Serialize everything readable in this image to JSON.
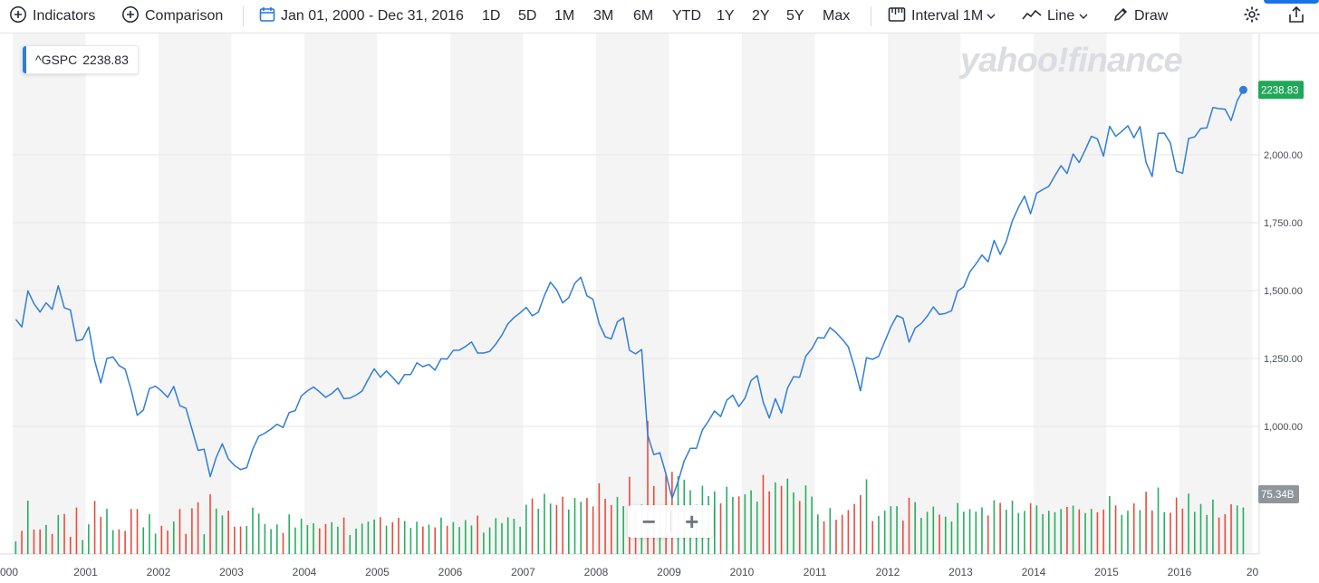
{
  "toolbar": {
    "indicators": "Indicators",
    "comparison": "Comparison",
    "date_range": "Jan 01, 2000 - Dec 31, 2016",
    "ranges": [
      "1D",
      "5D",
      "1M",
      "3M",
      "6M",
      "YTD",
      "1Y",
      "2Y",
      "5Y",
      "Max"
    ],
    "interval_label": "Interval",
    "interval_value": "1M",
    "chart_type": "Line",
    "draw": "Draw"
  },
  "legend": {
    "symbol": "^GSPC",
    "value": "2238.83"
  },
  "watermark": "yahoo!finance",
  "zoom": {
    "minus": "−",
    "plus": "+"
  },
  "colors": {
    "line": "#2f7ed8",
    "up": "#27ae60",
    "down": "#e74c3c",
    "last_price_bg": "#20a858",
    "volume_label_bg": "#8f959b"
  },
  "chart_data": {
    "type": "line",
    "symbol": "^GSPC",
    "x_ticks": [
      "000",
      "2001",
      "2002",
      "2003",
      "2004",
      "2005",
      "2006",
      "2007",
      "2008",
      "2009",
      "2010",
      "2011",
      "2012",
      "2013",
      "2014",
      "2015",
      "2016",
      "20"
    ],
    "y_ticks": [
      "1,000.00",
      "1,250.00",
      "1,500.00",
      "1,750.00",
      "2,000.00"
    ],
    "ylim": [
      730,
      2360
    ],
    "last_price_label": "2238.83",
    "volume_label": "75.34B",
    "start_year": 2000,
    "close": [
      1394,
      1366,
      1499,
      1452,
      1421,
      1455,
      1431,
      1518,
      1437,
      1429,
      1315,
      1320,
      1366,
      1240,
      1160,
      1250,
      1256,
      1224,
      1211,
      1134,
      1041,
      1060,
      1139,
      1148,
      1130,
      1107,
      1147,
      1076,
      1067,
      990,
      912,
      916,
      815,
      886,
      936,
      880,
      856,
      841,
      848,
      916,
      964,
      975,
      990,
      1008,
      996,
      1051,
      1058,
      1112,
      1131,
      1145,
      1127,
      1107,
      1121,
      1141,
      1102,
      1104,
      1115,
      1130,
      1173,
      1212,
      1181,
      1204,
      1181,
      1156,
      1191,
      1191,
      1234,
      1220,
      1228,
      1207,
      1249,
      1248,
      1280,
      1281,
      1294,
      1311,
      1270,
      1270,
      1276,
      1303,
      1336,
      1378,
      1401,
      1418,
      1438,
      1407,
      1421,
      1482,
      1531,
      1503,
      1455,
      1474,
      1527,
      1549,
      1481,
      1468,
      1378,
      1330,
      1322,
      1385,
      1400,
      1280,
      1267,
      1283,
      968,
      896,
      903,
      825,
      735,
      798,
      873,
      919,
      919,
      987,
      1020,
      1057,
      1036,
      1096,
      1115,
      1073,
      1104,
      1169,
      1187,
      1089,
      1031,
      1102,
      1049,
      1141,
      1183,
      1181,
      1258,
      1286,
      1327,
      1325,
      1364,
      1345,
      1321,
      1293,
      1219,
      1131,
      1253,
      1247,
      1258,
      1312,
      1366,
      1408,
      1398,
      1310,
      1362,
      1379,
      1406,
      1440,
      1412,
      1416,
      1426,
      1498,
      1514,
      1569,
      1598,
      1631,
      1606,
      1685,
      1633,
      1681,
      1757,
      1806,
      1848,
      1783,
      1859,
      1872,
      1884,
      1923,
      1960,
      1931,
      2003,
      1972,
      2018,
      2068,
      2059,
      1995,
      2105,
      2068,
      2086,
      2107,
      2063,
      2104,
      1972,
      1920,
      2079,
      2080,
      2044,
      1940,
      1932,
      2060,
      2066,
      2097,
      2099,
      2174,
      2170,
      2168,
      2126,
      2199,
      2239
    ]
  }
}
